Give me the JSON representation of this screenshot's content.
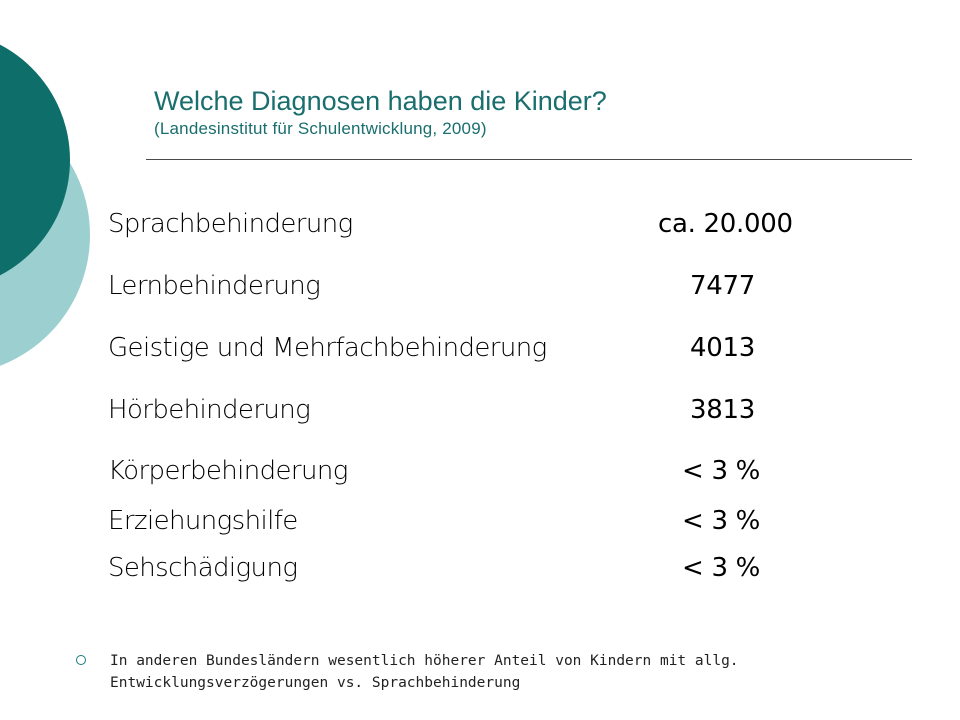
{
  "slide": {
    "title": "Welche Diagnosen haben die Kinder?",
    "subtitle": "(Landesinstitut für Schulentwicklung, 2009)"
  },
  "rows": [
    {
      "label": "Sprachbehinderung",
      "value": "ca. 20.000"
    },
    {
      "label": "Lernbehinderung",
      "value": "7477"
    },
    {
      "label": "Geistige und Mehrfachbehinderung",
      "value": "4013"
    },
    {
      "label": "Hörbehinderung",
      "value": "3813"
    },
    {
      "label": "Körperbehinderung",
      "value": "< 3 %"
    },
    {
      "label": "Erziehungshilfe",
      "value": "< 3 %"
    },
    {
      "label": "Sehschädigung",
      "value": "< 3 %"
    }
  ],
  "note": {
    "line1": "In anderen Bundesländern wesentlich höherer Anteil von Kindern mit allg.",
    "line2": "Entwicklungsverzögerungen vs. Sprachbehinderung"
  },
  "colors": {
    "dark_teal": "#0e6e6a",
    "light_teal": "#9ccfcf",
    "title_color": "#1a6e6e"
  }
}
